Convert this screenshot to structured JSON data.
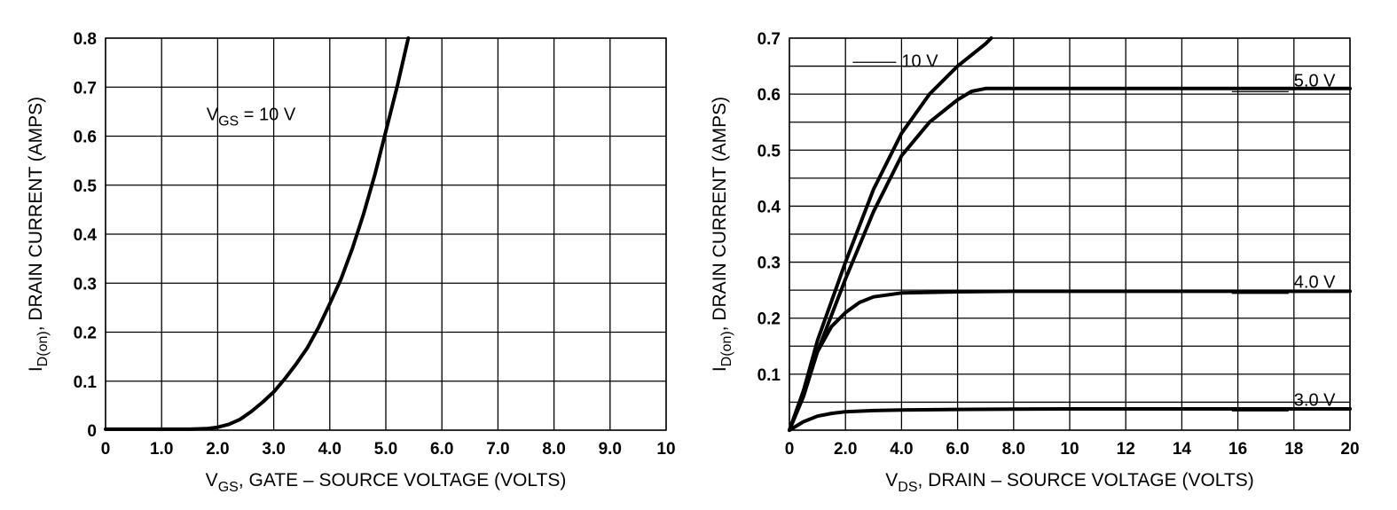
{
  "chart_data": [
    {
      "type": "line",
      "xlabel": {
        "main": "V",
        "sub": "GS",
        "rest": ", GATE – SOURCE VOLTAGE (VOLTS)"
      },
      "ylabel": {
        "main": "I",
        "sub": "D(on)",
        "rest": ", DRAIN CURRENT (AMPS)"
      },
      "xlim": [
        0,
        10
      ],
      "ylim": [
        0,
        0.8
      ],
      "x_ticks": [
        0,
        1,
        2,
        3,
        4,
        5,
        6,
        7,
        8,
        9,
        10
      ],
      "x_tick_labels": [
        "0",
        "1.0",
        "2.0",
        "3.0",
        "4.0",
        "5.0",
        "6.0",
        "7.0",
        "8.0",
        "9.0",
        "10"
      ],
      "y_ticks": [
        0,
        0.1,
        0.2,
        0.3,
        0.4,
        0.5,
        0.6,
        0.7,
        0.8
      ],
      "y_tick_labels": [
        "0",
        "0.1",
        "0.2",
        "0.3",
        "0.4",
        "0.5",
        "0.6",
        "0.7",
        "0.8"
      ],
      "grid": true,
      "annotations": [
        {
          "main": "V",
          "sub": "GS",
          "rest": " = 10 V",
          "x": 1.8,
          "y": 0.645
        }
      ],
      "series": [
        {
          "x": [
            0,
            1.5,
            1.8,
            2.0,
            2.2,
            2.4,
            2.6,
            2.8,
            3.0,
            3.2,
            3.4,
            3.6,
            3.8,
            4.0,
            4.2,
            4.4,
            4.6,
            4.8,
            5.0,
            5.2,
            5.4
          ],
          "y": [
            0.002,
            0.002,
            0.003,
            0.006,
            0.012,
            0.022,
            0.038,
            0.057,
            0.078,
            0.105,
            0.135,
            0.168,
            0.21,
            0.258,
            0.308,
            0.37,
            0.44,
            0.52,
            0.61,
            0.7,
            0.8
          ]
        }
      ]
    },
    {
      "type": "line",
      "xlabel": {
        "main": "V",
        "sub": "DS",
        "rest": ", DRAIN – SOURCE VOLTAGE (VOLTS)"
      },
      "ylabel": {
        "main": "I",
        "sub": "D(on)",
        "rest": ", DRAIN CURRENT (AMPS)"
      },
      "xlim": [
        0,
        20
      ],
      "ylim": [
        0,
        0.7
      ],
      "x_ticks": [
        0,
        2,
        4,
        6,
        8,
        10,
        12,
        14,
        16,
        18,
        20
      ],
      "x_tick_labels": [
        "0",
        "2.0",
        "4.0",
        "6.0",
        "8.0",
        "10",
        "12",
        "14",
        "16",
        "18",
        "20"
      ],
      "y_ticks": [
        0,
        0.1,
        0.2,
        0.3,
        0.4,
        0.5,
        0.6,
        0.7
      ],
      "y_tick_labels": [
        "",
        "0.1",
        "0.2",
        "0.3",
        "0.4",
        "0.5",
        "0.6",
        "0.7"
      ],
      "grid": true,
      "series": [
        {
          "name": "10 V",
          "label_at": {
            "x": 4.0,
            "y": 0.66
          },
          "x": [
            0,
            0.5,
            1.0,
            2.0,
            3.0,
            4.0,
            5.0,
            6.0,
            7.0,
            7.2
          ],
          "y": [
            0,
            0.07,
            0.16,
            0.3,
            0.43,
            0.53,
            0.6,
            0.65,
            0.69,
            0.7
          ]
        },
        {
          "name": "5.0 V",
          "label_at": {
            "x": 18.0,
            "y": 0.625
          },
          "x": [
            0,
            0.5,
            1.0,
            2.0,
            3.0,
            4.0,
            5.0,
            6.0,
            6.5,
            7.0,
            8.0,
            10,
            12,
            14,
            16,
            18,
            20
          ],
          "y": [
            0,
            0.06,
            0.14,
            0.27,
            0.39,
            0.49,
            0.55,
            0.59,
            0.605,
            0.61,
            0.61,
            0.61,
            0.61,
            0.61,
            0.61,
            0.61,
            0.61
          ]
        },
        {
          "name": "4.0 V",
          "label_at": {
            "x": 18.0,
            "y": 0.265
          },
          "x": [
            0,
            0.5,
            1.0,
            1.5,
            2.0,
            2.5,
            3.0,
            4.0,
            6.0,
            8.0,
            10,
            12,
            14,
            16,
            18,
            20
          ],
          "y": [
            0,
            0.07,
            0.14,
            0.185,
            0.21,
            0.228,
            0.238,
            0.245,
            0.247,
            0.248,
            0.248,
            0.248,
            0.248,
            0.248,
            0.248,
            0.248
          ]
        },
        {
          "name": "3.0 V",
          "label_at": {
            "x": 18.0,
            "y": 0.055
          },
          "x": [
            0,
            0.5,
            1.0,
            1.5,
            2.0,
            3.0,
            4.0,
            6.0,
            10,
            14,
            20
          ],
          "y": [
            0,
            0.015,
            0.025,
            0.03,
            0.033,
            0.035,
            0.036,
            0.037,
            0.038,
            0.038,
            0.038
          ]
        }
      ]
    }
  ]
}
